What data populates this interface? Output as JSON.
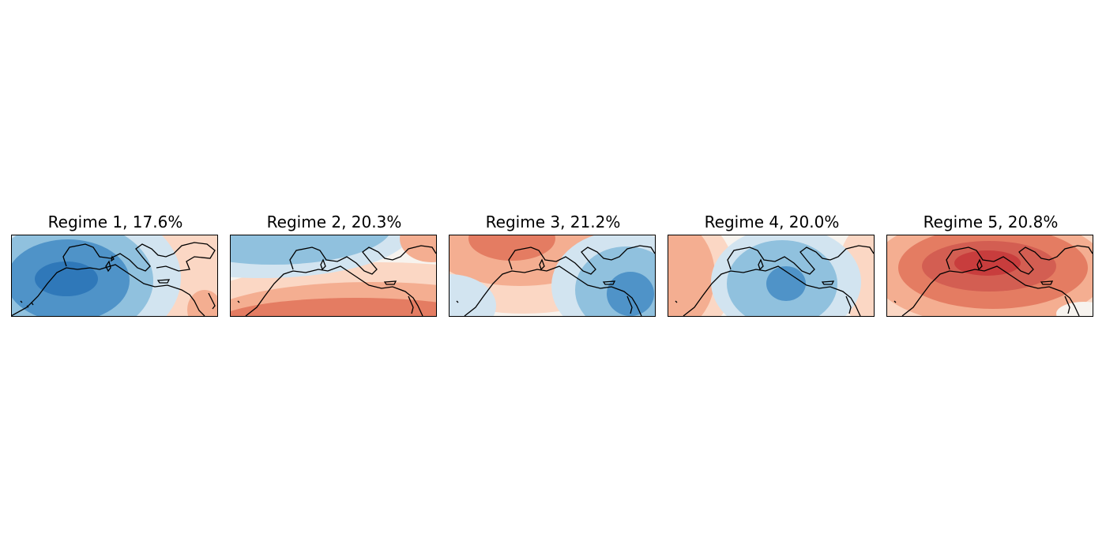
{
  "figure": {
    "title": "",
    "panels": [
      {
        "title": "Regime 1, 17.6%",
        "regime": 1,
        "frequency_pct": 17.6,
        "anomaly_pattern": "negative centered over Iberia/Morocco, weak positive east"
      },
      {
        "title": "Regime 2, 20.3%",
        "regime": 2,
        "frequency_pct": 20.3,
        "anomaly_pattern": "negative northwest, positive southeast"
      },
      {
        "title": "Regime 3, 21.2%",
        "regime": 3,
        "frequency_pct": 21.2,
        "anomaly_pattern": "positive over western Mediterranean, negative east"
      },
      {
        "title": "Regime 4, 20.0%",
        "regime": 4,
        "frequency_pct": 20.0,
        "anomaly_pattern": "positive west and east, negative central Mediterranean"
      },
      {
        "title": "Regime 5, 20.8%",
        "regime": 5,
        "frequency_pct": 20.8,
        "anomaly_pattern": "strong positive centered over Italy"
      }
    ]
  },
  "colors": {
    "neg3": "#2f78b9",
    "neg2": "#4f93c8",
    "neg1": "#90c1de",
    "neg0": "#d2e4f0",
    "neutral": "#f7f3ee",
    "pos0": "#fbd7c4",
    "pos1": "#f4ae91",
    "pos2": "#e47c62",
    "pos3": "#c83d3d"
  }
}
